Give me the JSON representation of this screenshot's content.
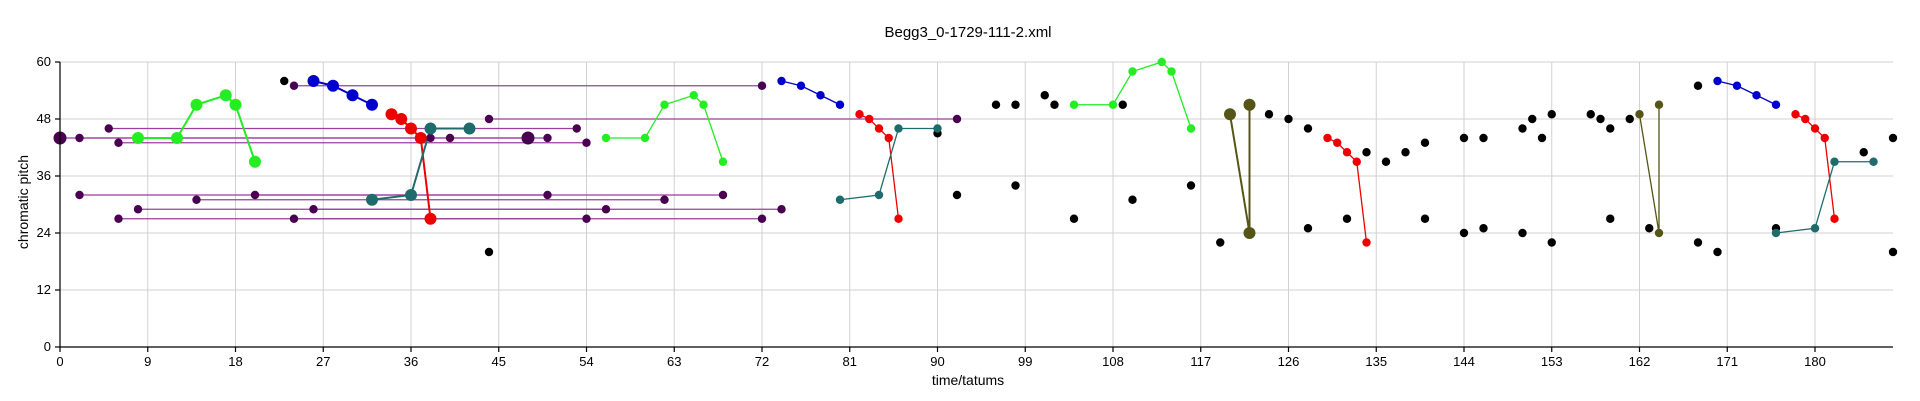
{
  "chart_data": {
    "type": "scatter",
    "title": "Begg3_0-1729-111-2.xml",
    "xlabel": "time/tatums",
    "ylabel": "chromatic pitch",
    "xlim": [
      0,
      188
    ],
    "ylim": [
      0,
      60
    ],
    "x_ticks": [
      0,
      9,
      18,
      27,
      36,
      45,
      54,
      63,
      72,
      81,
      90,
      99,
      108,
      117,
      126,
      135,
      144,
      153,
      162,
      171,
      180
    ],
    "y_ticks": [
      0,
      12,
      24,
      36,
      48,
      60
    ],
    "grid": true,
    "colors": {
      "black": "#000000",
      "purple": "#4a0050",
      "purple_line": "#9a3fa0",
      "green": "#22ee22",
      "blue": "#0000cc",
      "red": "#ee0000",
      "teal": "#1f6b6b",
      "olive": "#555518"
    },
    "series": [
      {
        "color": "black",
        "points": [
          [
            23,
            56
          ],
          [
            44,
            20
          ],
          [
            90,
            45
          ],
          [
            92,
            32
          ],
          [
            96,
            51
          ],
          [
            98,
            51
          ],
          [
            98,
            34
          ],
          [
            101,
            53
          ],
          [
            102,
            51
          ],
          [
            104,
            27
          ],
          [
            109,
            51
          ],
          [
            110,
            31
          ],
          [
            116,
            34
          ],
          [
            119,
            22
          ],
          [
            124,
            49
          ],
          [
            126,
            48
          ],
          [
            128,
            46
          ],
          [
            128,
            25
          ],
          [
            132,
            27
          ],
          [
            134,
            41
          ],
          [
            136,
            39
          ],
          [
            138,
            41
          ],
          [
            140,
            43
          ],
          [
            140,
            27
          ],
          [
            144,
            24
          ],
          [
            144,
            44
          ],
          [
            146,
            44
          ],
          [
            146,
            25
          ],
          [
            150,
            46
          ],
          [
            150,
            24
          ],
          [
            151,
            48
          ],
          [
            152,
            44
          ],
          [
            153,
            49
          ],
          [
            153,
            22
          ],
          [
            157,
            49
          ],
          [
            158,
            48
          ],
          [
            159,
            46
          ],
          [
            159,
            27
          ],
          [
            161,
            48
          ],
          [
            163,
            25
          ],
          [
            168,
            55
          ],
          [
            168,
            22
          ],
          [
            170,
            20
          ],
          [
            176,
            25
          ],
          [
            185,
            41
          ],
          [
            188,
            44
          ],
          [
            188,
            20
          ]
        ]
      },
      {
        "color": "purple",
        "points": [
          [
            0,
            44
          ],
          [
            2,
            44
          ],
          [
            5,
            46
          ],
          [
            6,
            43
          ],
          [
            24,
            55
          ],
          [
            38,
            44
          ],
          [
            40,
            44
          ],
          [
            44,
            48
          ],
          [
            48,
            44
          ],
          [
            50,
            44
          ],
          [
            53,
            46
          ],
          [
            54,
            43
          ],
          [
            72,
            55
          ],
          [
            92,
            48
          ],
          [
            2,
            32
          ],
          [
            14,
            31
          ],
          [
            20,
            32
          ],
          [
            50,
            32
          ],
          [
            62,
            31
          ],
          [
            68,
            32
          ],
          [
            8,
            29
          ],
          [
            26,
            29
          ],
          [
            56,
            29
          ],
          [
            74,
            29
          ],
          [
            6,
            27
          ],
          [
            24,
            27
          ],
          [
            54,
            27
          ],
          [
            72,
            27
          ]
        ],
        "links": [
          [
            [
              0,
              44
            ],
            [
              48,
              44
            ]
          ],
          [
            [
              2,
              44
            ],
            [
              50,
              44
            ]
          ],
          [
            [
              5,
              46
            ],
            [
              53,
              46
            ]
          ],
          [
            [
              6,
              43
            ],
            [
              54,
              43
            ]
          ],
          [
            [
              24,
              55
            ],
            [
              72,
              55
            ]
          ],
          [
            [
              44,
              48
            ],
            [
              92,
              48
            ]
          ],
          [
            [
              2,
              32
            ],
            [
              50,
              32
            ]
          ],
          [
            [
              14,
              31
            ],
            [
              62,
              31
            ]
          ],
          [
            [
              20,
              32
            ],
            [
              68,
              32
            ]
          ],
          [
            [
              8,
              29
            ],
            [
              56,
              29
            ]
          ],
          [
            [
              26,
              29
            ],
            [
              74,
              29
            ]
          ],
          [
            [
              6,
              27
            ],
            [
              54,
              27
            ]
          ],
          [
            [
              24,
              27
            ],
            [
              72,
              27
            ]
          ]
        ],
        "large_points": [
          [
            0,
            44
          ],
          [
            48,
            44
          ]
        ]
      },
      {
        "color": "green",
        "lines": [
          [
            [
              8,
              44
            ],
            [
              12,
              44
            ],
            [
              14,
              51
            ],
            [
              17,
              53
            ],
            [
              18,
              51
            ],
            [
              20,
              39
            ]
          ],
          [
            [
              56,
              44
            ],
            [
              60,
              44
            ],
            [
              62,
              51
            ],
            [
              65,
              53
            ],
            [
              66,
              51
            ],
            [
              68,
              39
            ]
          ],
          [
            [
              104,
              51
            ],
            [
              108,
              51
            ],
            [
              110,
              58
            ],
            [
              113,
              60
            ],
            [
              114,
              58
            ],
            [
              116,
              46
            ]
          ]
        ],
        "large_lines": [
          0
        ]
      },
      {
        "color": "blue",
        "lines": [
          [
            [
              26,
              56
            ],
            [
              28,
              55
            ],
            [
              30,
              53
            ],
            [
              32,
              51
            ]
          ],
          [
            [
              74,
              56
            ],
            [
              76,
              55
            ],
            [
              78,
              53
            ],
            [
              80,
              51
            ]
          ],
          [
            [
              170,
              56
            ],
            [
              172,
              55
            ],
            [
              174,
              53
            ],
            [
              176,
              51
            ]
          ]
        ],
        "large_lines": [
          0
        ]
      },
      {
        "color": "red",
        "lines": [
          [
            [
              34,
              49
            ],
            [
              35,
              48
            ],
            [
              36,
              46
            ],
            [
              37,
              44
            ],
            [
              38,
              27
            ]
          ],
          [
            [
              82,
              49
            ],
            [
              83,
              48
            ],
            [
              84,
              46
            ],
            [
              85,
              44
            ],
            [
              86,
              27
            ]
          ],
          [
            [
              130,
              44
            ],
            [
              131,
              43
            ],
            [
              132,
              41
            ],
            [
              133,
              39
            ],
            [
              134,
              22
            ]
          ],
          [
            [
              178,
              49
            ],
            [
              179,
              48
            ],
            [
              180,
              46
            ],
            [
              181,
              44
            ],
            [
              182,
              27
            ]
          ]
        ],
        "large_lines": [
          0
        ]
      },
      {
        "color": "teal",
        "lines": [
          [
            [
              32,
              31
            ],
            [
              36,
              32
            ],
            [
              38,
              46
            ],
            [
              42,
              46
            ]
          ],
          [
            [
              80,
              31
            ],
            [
              84,
              32
            ],
            [
              86,
              46
            ],
            [
              90,
              46
            ]
          ],
          [
            [
              176,
              24
            ],
            [
              180,
              25
            ],
            [
              182,
              39
            ],
            [
              186,
              39
            ]
          ]
        ],
        "large_lines": [
          0
        ]
      },
      {
        "color": "olive",
        "lines": [
          [
            [
              120,
              49
            ],
            [
              122,
              24
            ],
            [
              122,
              51
            ]
          ],
          [
            [
              162,
              49
            ],
            [
              164,
              24
            ],
            [
              164,
              51
            ]
          ]
        ],
        "large_lines": [
          0
        ]
      }
    ]
  }
}
